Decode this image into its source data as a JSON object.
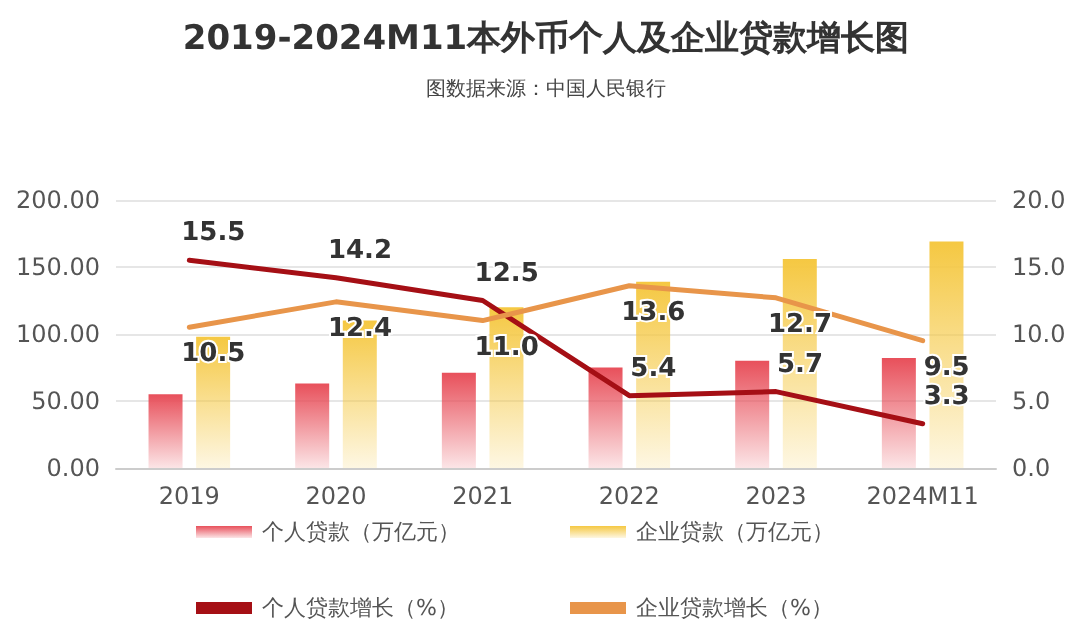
{
  "chart_data": {
    "type": "bar",
    "title": "2019-2024M11本外币个人及企业贷款增长图",
    "subtitle": "图数据来源：中国人民银行",
    "categories": [
      "2019",
      "2020",
      "2021",
      "2022",
      "2023",
      "2024M11"
    ],
    "series": [
      {
        "name": "个人贷款（万亿元）",
        "color": "#e8505b",
        "values": [
          55,
          63,
          71,
          75,
          80,
          82
        ]
      },
      {
        "name": "企业贷款（万亿元）",
        "color": "#f5c842",
        "values": [
          98,
          110,
          120,
          139,
          156,
          169
        ]
      },
      {
        "name": "个人贷款增长（%）",
        "type": "line",
        "axis": "y2",
        "color": "#a50f15",
        "values": [
          15.5,
          14.2,
          12.5,
          5.4,
          5.7,
          3.3
        ],
        "value_labels": [
          "15.5",
          "14.2",
          "12.5",
          "5.4",
          "5.7",
          "3.3"
        ]
      },
      {
        "name": "企业贷款增长（%）",
        "type": "line",
        "axis": "y2",
        "color": "#e8954a",
        "values": [
          10.5,
          12.4,
          11.0,
          13.6,
          12.7,
          9.5
        ],
        "value_labels": [
          "10.5",
          "12.4",
          "11.0",
          "13.6",
          "12.7",
          "9.5"
        ]
      }
    ],
    "ylim": [
      0,
      200
    ],
    "yticks": [
      {
        "value": 0,
        "label": "0.00"
      },
      {
        "value": 50,
        "label": "50.00"
      },
      {
        "value": 100,
        "label": "100.00"
      },
      {
        "value": 150,
        "label": "150.00"
      },
      {
        "value": 200,
        "label": "200.00"
      }
    ],
    "y2lim": [
      0,
      20
    ],
    "y2ticks": [
      {
        "value": 0,
        "label": "0.0"
      },
      {
        "value": 5,
        "label": "5.0"
      },
      {
        "value": 10,
        "label": "10.0"
      },
      {
        "value": 15,
        "label": "15.0"
      },
      {
        "value": 20,
        "label": "20.0"
      }
    ],
    "grid": "y",
    "legend": "bottom",
    "marker": "none",
    "line_style": "solid"
  }
}
